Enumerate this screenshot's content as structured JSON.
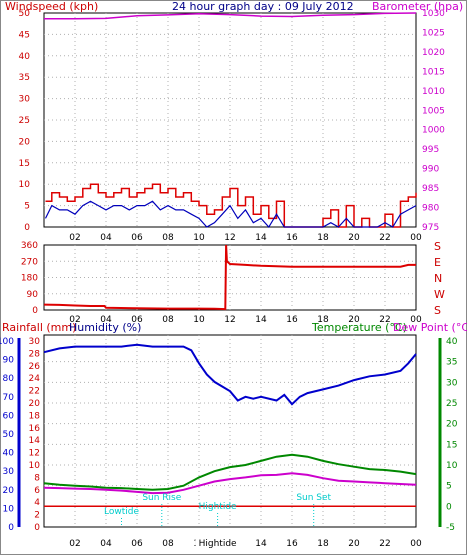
{
  "chart_data": [
    {
      "type": "line",
      "title": "24 hour graph day : 09 July 2012",
      "ylabel_left": "Windspeed (kph)",
      "ylabel_right": "Barometer (hpa)",
      "x": [
        0,
        24
      ],
      "x_ticks": [
        "02",
        "04",
        "06",
        "08",
        "10",
        "12",
        "14",
        "16",
        "18",
        "20",
        "22",
        "00"
      ],
      "ylim_left": [
        0,
        50
      ],
      "y_ticks_left": [
        "0",
        "5",
        "10",
        "15",
        "20",
        "25",
        "30",
        "35",
        "40",
        "45",
        "50"
      ],
      "ylim_right": [
        975,
        1030
      ],
      "y_ticks_right": [
        "975",
        "980",
        "985",
        "990",
        "995",
        "1000",
        "1005",
        "1010",
        "1015",
        "1020",
        "1025",
        "1030"
      ],
      "grid": true,
      "series": [
        {
          "name": "Windspeed (kph)",
          "axis": "left",
          "color": "#0000bb",
          "x": [
            0.1,
            0.5,
            1,
            1.5,
            2,
            2.5,
            3,
            3.5,
            4,
            4.5,
            5,
            5.5,
            6,
            6.5,
            7,
            7.5,
            8,
            8.5,
            9,
            9.5,
            10,
            10.5,
            11,
            11.5,
            12,
            12.5,
            13,
            13.5,
            14,
            14.5,
            15,
            15.5,
            16,
            16.5,
            17,
            17.5,
            18,
            18.5,
            19,
            19.5,
            20,
            20.5,
            21,
            21.5,
            22,
            22.5,
            23,
            23.5,
            24
          ],
          "y": [
            2,
            5,
            4,
            4,
            3,
            5,
            6,
            5,
            4,
            5,
            5,
            4,
            5,
            5,
            6,
            4,
            5,
            4,
            4,
            3,
            2,
            0,
            1,
            3,
            5,
            2,
            4,
            1,
            2,
            0,
            3,
            0,
            0,
            0,
            0,
            0,
            0,
            1,
            0,
            2,
            0,
            0,
            0,
            0,
            1,
            0,
            3,
            4,
            5
          ]
        },
        {
          "name": "Gust (kph)",
          "axis": "left",
          "color": "#dd0000",
          "x": [
            0.1,
            0.5,
            1,
            1.5,
            2,
            2.5,
            3,
            3.5,
            4,
            4.5,
            5,
            5.5,
            6,
            6.5,
            7,
            7.5,
            8,
            8.5,
            9,
            9.5,
            10,
            10.5,
            11,
            11.5,
            12,
            12.5,
            13,
            13.5,
            14,
            14.5,
            15,
            15.5,
            16,
            16.5,
            17,
            17.5,
            18,
            18.5,
            19,
            19.5,
            20,
            20.5,
            21,
            21.5,
            22,
            22.5,
            23,
            23.5,
            24
          ],
          "y": [
            6,
            8,
            7,
            6,
            7,
            9,
            10,
            8,
            7,
            8,
            9,
            7,
            8,
            9,
            10,
            8,
            9,
            7,
            8,
            6,
            5,
            3,
            4,
            7,
            9,
            5,
            7,
            3,
            5,
            2,
            6,
            0,
            0,
            0,
            0,
            0,
            2,
            4,
            0,
            5,
            0,
            2,
            0,
            0,
            3,
            0,
            6,
            7,
            8
          ]
        },
        {
          "name": "Barometer (hpa)",
          "axis": "right",
          "color": "#cc00cc",
          "x": [
            0,
            2,
            4,
            6,
            8,
            10,
            12,
            14,
            16,
            18,
            20,
            22,
            24
          ],
          "y": [
            1028.5,
            1028.5,
            1028.6,
            1029.3,
            1029.5,
            1029.8,
            1029.6,
            1029.2,
            1029.1,
            1029.4,
            1029.6,
            1029.9,
            1030
          ]
        }
      ]
    },
    {
      "type": "line",
      "ylabel_left": "",
      "x_ticks": [
        "02",
        "04",
        "06",
        "08",
        "10",
        "12",
        "14",
        "16",
        "18",
        "20",
        "22",
        "00"
      ],
      "ylim": [
        0,
        360
      ],
      "y_ticks": [
        "0",
        "90",
        "180",
        "270",
        "360"
      ],
      "direction_labels": [
        "S",
        "E",
        "N",
        "W",
        "S"
      ],
      "series": [
        {
          "name": "Wind direction",
          "color": "#dd0000",
          "x": [
            0,
            1,
            2,
            3,
            3.9,
            4,
            6,
            8,
            10,
            11,
            11.7,
            11.75,
            11.8,
            12,
            13,
            14,
            16,
            18,
            20,
            22,
            23,
            23.5,
            24
          ],
          "y": [
            30,
            28,
            25,
            22,
            22,
            12,
            10,
            8,
            8,
            7,
            5,
            360,
            270,
            255,
            250,
            245,
            240,
            240,
            240,
            240,
            240,
            250,
            250
          ]
        }
      ]
    },
    {
      "type": "line",
      "ylabel_left": "Rainfall (mm)",
      "ylabel_left2": "Humidity (%)",
      "ylabel_right": "Temperature (°C)",
      "ylabel_right2": "Dew Point (°C)",
      "x_ticks": [
        "02",
        "04",
        "06",
        "08",
        "10",
        "12",
        "14",
        "16",
        "18",
        "20",
        "22",
        "00"
      ],
      "y_ticks_hum": [
        "0",
        "10",
        "20",
        "30",
        "40",
        "50",
        "60",
        "70",
        "80",
        "90",
        "100"
      ],
      "y_ticks_rain": [
        "0",
        "2",
        "4",
        "6",
        "8",
        "10",
        "12",
        "14",
        "16",
        "18",
        "20",
        "22",
        "24",
        "26",
        "28",
        "30"
      ],
      "y_ticks_temp": [
        "-5",
        "0",
        "5",
        "10",
        "15",
        "20",
        "25",
        "30",
        "35",
        "40"
      ],
      "ylim_humidity": [
        0,
        100
      ],
      "ylim_temperature": [
        -5,
        40
      ],
      "annotations": [
        {
          "text": "Lowtide",
          "x": 5
        },
        {
          "text": "Sun Rise",
          "x": 7.6
        },
        {
          "text": "Hightide",
          "x": 11.2
        },
        {
          "text": "Sun Set",
          "x": 17.4
        },
        {
          "text": "Hightide",
          "x": 11.2,
          "axis": true
        }
      ],
      "series": [
        {
          "name": "Humidity (%)",
          "color": "#0000cc",
          "x": [
            0,
            1,
            2,
            3,
            4,
            5,
            6,
            7,
            8,
            9,
            9.5,
            10,
            10.5,
            11,
            12,
            12.5,
            13,
            13.5,
            14,
            15,
            15.5,
            16,
            16.5,
            17,
            18,
            19,
            20,
            21,
            22,
            23,
            23.5,
            24
          ],
          "y": [
            94,
            96,
            97,
            97,
            97,
            97,
            98,
            97,
            97,
            97,
            95,
            88,
            82,
            78,
            73,
            68,
            70,
            69,
            70,
            68,
            71,
            66,
            70,
            72,
            74,
            76,
            79,
            81,
            82,
            84,
            88,
            93
          ]
        },
        {
          "name": "Temperature (°C)",
          "color": "#008800",
          "x": [
            0,
            1,
            2,
            3,
            4,
            5,
            6,
            7,
            8,
            9,
            10,
            11,
            12,
            13,
            14,
            15,
            16,
            17,
            18,
            19,
            20,
            21,
            22,
            23,
            24
          ],
          "y": [
            5.6,
            5.2,
            5,
            4.8,
            4.5,
            4.4,
            4.2,
            4,
            4.2,
            5,
            7,
            8.5,
            9.5,
            10,
            11,
            12,
            12.5,
            12,
            11,
            10.2,
            9.6,
            9,
            8.8,
            8.4,
            7.8
          ]
        },
        {
          "name": "Dew Point (°C)",
          "color": "#cc00cc",
          "x": [
            0,
            1,
            2,
            3,
            4,
            5,
            6,
            7,
            8,
            9,
            10,
            11,
            12,
            13,
            14,
            15,
            16,
            17,
            18,
            19,
            20,
            21,
            22,
            23,
            24
          ],
          "y": [
            4.5,
            4.4,
            4.3,
            4.2,
            4,
            3.8,
            3.5,
            3.2,
            3.3,
            4,
            5,
            6,
            6.6,
            7,
            7.5,
            7.6,
            8,
            7.6,
            6.8,
            6.2,
            6,
            5.8,
            5.6,
            5.4,
            5.2
          ]
        },
        {
          "name": "Rainfall (mm)",
          "color": "#dd0000",
          "x": [
            0,
            24
          ],
          "y": [
            0,
            0
          ]
        }
      ]
    }
  ],
  "colors": {
    "wind_axis": "#cc0000",
    "baro_axis": "#cc00cc",
    "hum_axis": "#0000cc",
    "temp_axis": "#008800",
    "annotation": "#00cccc",
    "grid": "#b0b0b0"
  }
}
